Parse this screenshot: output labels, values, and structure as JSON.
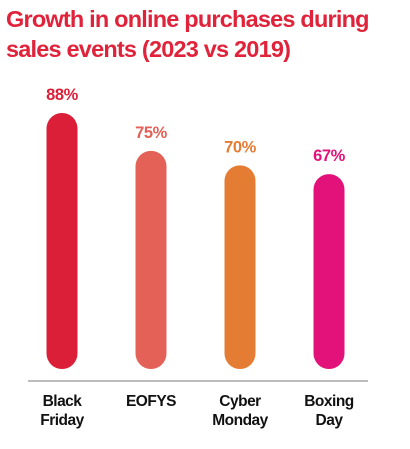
{
  "chart_data": {
    "type": "bar",
    "title": "Growth in online purchases during sales events (2023 vs 2019)",
    "categories": [
      "Black Friday",
      "EOFYS",
      "Cyber Monday",
      "Boxing Day"
    ],
    "category_lines": [
      [
        "Black",
        "Friday"
      ],
      [
        "EOFYS"
      ],
      [
        "Cyber",
        "Monday"
      ],
      [
        "Boxing",
        "Day"
      ]
    ],
    "values": [
      88,
      75,
      70,
      67
    ],
    "value_labels": [
      "88%",
      "75%",
      "70%",
      "67%"
    ],
    "colors": [
      "#dc1f38",
      "#e46158",
      "#e57c34",
      "#e3127a"
    ],
    "grid": false,
    "legend": "none"
  }
}
